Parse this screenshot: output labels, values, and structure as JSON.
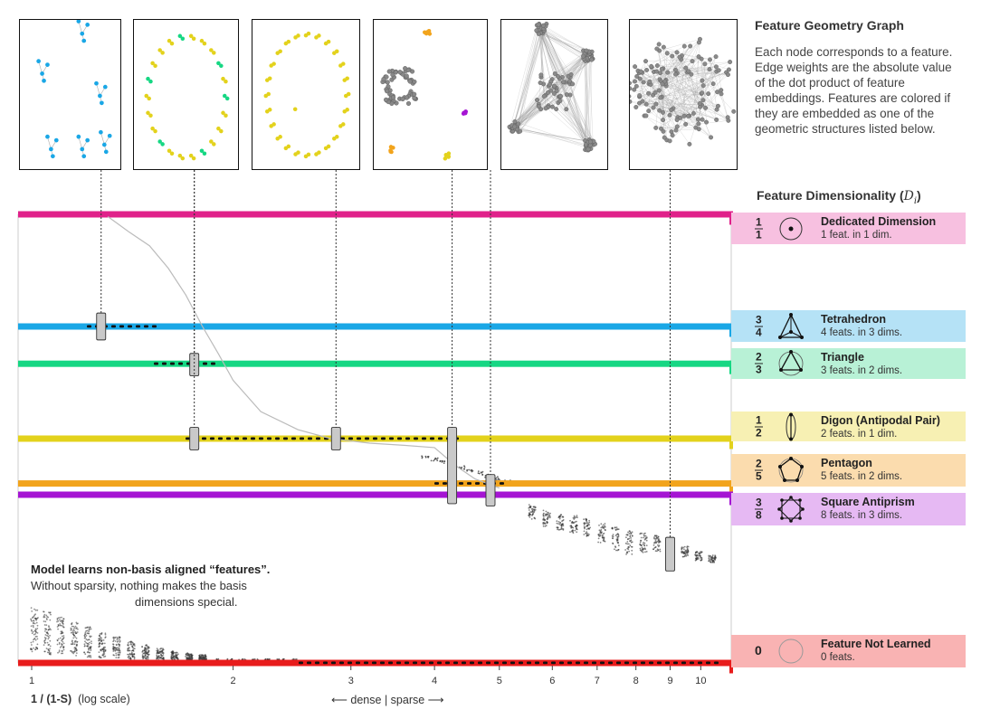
{
  "graph_panel": {
    "title": "Feature Geometry Graph",
    "description": "Each node corresponds to a feature. Edge weights are the absolute value of the dot product of feature embeddings. Features are colored if they are embedded as one of the geometric structures listed below."
  },
  "dimensionality_title": "Feature Dimensionality",
  "dimensionality_symbol": "D",
  "dimensionality_subscript": "i",
  "annotation": {
    "line1": "Model learns non-basis aligned “features”.",
    "line2": "Without sparsity, nothing makes the basis",
    "line3": "dimensions special."
  },
  "x_axis": {
    "title": "1 / (1-S)",
    "note": "(log scale)"
  },
  "direction": {
    "left": "dense",
    "right": "sparse"
  },
  "colors": {
    "dedicated": "#e0218a",
    "tetrahedron": "#1aa7e6",
    "triangle": "#16d783",
    "digon": "#e3d21c",
    "pentagon": "#f2a41c",
    "antiprism": "#a514d3",
    "not_learned": "#e81c1c"
  },
  "chart_data": {
    "type": "scatter",
    "x_scale": "log",
    "xlim": [
      1,
      10.5
    ],
    "ylim": [
      0,
      1
    ],
    "x_ticks": [
      "1",
      "2",
      "3",
      "4",
      "5",
      "6",
      "7",
      "8",
      "9",
      "10"
    ],
    "levels": [
      {
        "key": "dedicated",
        "num": "1",
        "den": "1",
        "value": 1.0,
        "name": "Dedicated Dimension",
        "desc": "1 feat. in 1 dim.",
        "color": "#e0218a",
        "bg": "#f7c0e0"
      },
      {
        "key": "tetrahedron",
        "num": "3",
        "den": "4",
        "value": 0.75,
        "name": "Tetrahedron",
        "desc": "4 feats. in 3 dims.",
        "color": "#1aa7e6",
        "bg": "#b5e2f6"
      },
      {
        "key": "triangle",
        "num": "2",
        "den": "3",
        "value": 0.667,
        "name": "Triangle",
        "desc": "3 feats. in 2 dims.",
        "color": "#16d783",
        "bg": "#b8f1d6"
      },
      {
        "key": "digon",
        "num": "1",
        "den": "2",
        "value": 0.5,
        "name": "Digon (Antipodal Pair)",
        "desc": "2 feats. in 1 dim.",
        "color": "#e3d21c",
        "bg": "#f7f0b3"
      },
      {
        "key": "pentagon",
        "num": "2",
        "den": "5",
        "value": 0.4,
        "name": "Pentagon",
        "desc": "5 feats. in 2 dims.",
        "color": "#f2a41c",
        "bg": "#fbdcae"
      },
      {
        "key": "antiprism",
        "num": "3",
        "den": "8",
        "value": 0.375,
        "name": "Square Antiprism",
        "desc": "8 feats. in 3 dims.",
        "color": "#a514d3",
        "bg": "#e6b9f3"
      },
      {
        "key": "not_learned",
        "num": "0",
        "den": "",
        "value": 0.0,
        "name": "Feature Not Learned",
        "desc": "0 feats.",
        "color": "#e81c1c",
        "bg": "#f9b3b3"
      }
    ],
    "curve": {
      "x": [
        1.3,
        1.4,
        1.5,
        1.6,
        1.7,
        1.8,
        1.9,
        2.0,
        2.2,
        2.5,
        2.8,
        3.2,
        3.6,
        4.0,
        4.3,
        4.6,
        5.0
      ],
      "y": [
        0.995,
        0.96,
        0.93,
        0.88,
        0.82,
        0.75,
        0.69,
        0.63,
        0.56,
        0.52,
        0.5,
        0.49,
        0.485,
        0.48,
        0.44,
        0.41,
        0.39
      ]
    },
    "markers": [
      {
        "x": 1.27,
        "y": 0.75,
        "y_min": 0.72,
        "y_max": 0.78,
        "thumbnail": 0
      },
      {
        "x": 1.75,
        "y": 0.667,
        "y_min": 0.64,
        "y_max": 0.69,
        "thumbnail": 1
      },
      {
        "x": 1.75,
        "y": 0.5,
        "y_min": 0.475,
        "y_max": 0.525,
        "thumbnail": 1
      },
      {
        "x": 2.85,
        "y": 0.5,
        "y_min": 0.475,
        "y_max": 0.525,
        "thumbnail": 2
      },
      {
        "x": 4.25,
        "y": 0.45,
        "y_min": 0.355,
        "y_max": 0.525,
        "thumbnail": 3
      },
      {
        "x": 4.85,
        "y": 0.38,
        "y_min": 0.35,
        "y_max": 0.42,
        "thumbnail": 4
      },
      {
        "x": 9.0,
        "y": 0.24,
        "y_min": 0.205,
        "y_max": 0.28,
        "thumbnail": 5
      }
    ],
    "thumbnails": [
      {
        "color": "tetrahedron"
      },
      {
        "color": "triangle",
        "secondary": "digon"
      },
      {
        "color": "digon"
      },
      {
        "color": "antiprism"
      },
      {
        "color": "dense"
      },
      {
        "color": "dense"
      }
    ]
  }
}
